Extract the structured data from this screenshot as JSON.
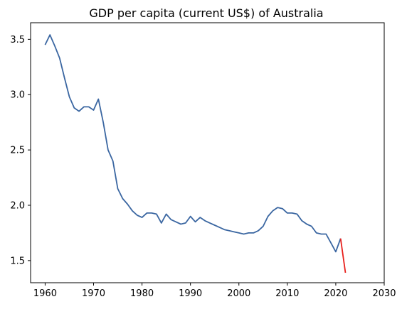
{
  "chart_data": {
    "type": "line",
    "title": "GDP per capita (current US$) of Australia",
    "xlabel": "",
    "ylabel": "",
    "xlim": [
      1957,
      2030
    ],
    "ylim": [
      1.3,
      3.65
    ],
    "x_ticks": [
      1960,
      1970,
      1980,
      1990,
      2000,
      2010,
      2020,
      2030
    ],
    "y_ticks": [
      1.5,
      2.0,
      2.5,
      3.0,
      3.5
    ],
    "x_tick_labels": [
      "1960",
      "1970",
      "1980",
      "1990",
      "2000",
      "2010",
      "2020",
      "2030"
    ],
    "y_tick_labels": [
      "1.5",
      "2.0",
      "2.5",
      "3.0",
      "3.5"
    ],
    "grid": false,
    "legend": "none",
    "series": [
      {
        "color": "#3a66a1",
        "x": [
          1960,
          1961,
          1962,
          1963,
          1964,
          1965,
          1966,
          1967,
          1968,
          1969,
          1970,
          1971,
          1972,
          1973,
          1974,
          1975,
          1976,
          1977,
          1978,
          1979,
          1980,
          1981,
          1982,
          1983,
          1984,
          1985,
          1986,
          1987,
          1988,
          1989,
          1990,
          1991,
          1992,
          1993,
          1994,
          1995,
          1996,
          1997,
          1998,
          1999,
          2000,
          2001,
          2002,
          2003,
          2004,
          2005,
          2006,
          2007,
          2008,
          2009,
          2010,
          2011,
          2012,
          2013,
          2014,
          2015,
          2016,
          2017,
          2018,
          2019,
          2020,
          2021
        ],
        "y": [
          3.45,
          3.54,
          3.44,
          3.33,
          3.15,
          2.98,
          2.88,
          2.85,
          2.89,
          2.89,
          2.86,
          2.96,
          2.75,
          2.5,
          2.4,
          2.15,
          2.06,
          2.01,
          1.95,
          1.91,
          1.89,
          1.93,
          1.93,
          1.92,
          1.84,
          1.92,
          1.87,
          1.85,
          1.83,
          1.84,
          1.9,
          1.85,
          1.89,
          1.86,
          1.84,
          1.82,
          1.8,
          1.78,
          1.77,
          1.76,
          1.75,
          1.74,
          1.75,
          1.75,
          1.77,
          1.81,
          1.9,
          1.95,
          1.98,
          1.97,
          1.93,
          1.93,
          1.92,
          1.86,
          1.83,
          1.81,
          1.75,
          1.74,
          1.74,
          1.66,
          1.58,
          1.7
        ]
      },
      {
        "color": "#e8201c",
        "x": [
          2021,
          2022
        ],
        "y": [
          1.7,
          1.39
        ]
      }
    ]
  }
}
